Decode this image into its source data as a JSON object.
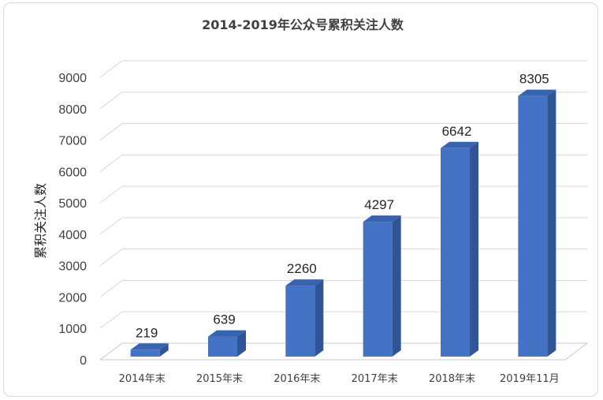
{
  "chart_data": {
    "type": "bar",
    "title": "2014-2019年公众号累积关注人数",
    "ylabel": "累积关注人数",
    "xlabel": "",
    "categories": [
      "2014年末",
      "2015年末",
      "2016年末",
      "2017年末",
      "2018年末",
      "2019年11月"
    ],
    "values": [
      219,
      639,
      2260,
      4297,
      6642,
      8305
    ],
    "data_labels": [
      "219",
      "639",
      "2260",
      "4297",
      "6642",
      "8305"
    ],
    "ylim": [
      0,
      9000
    ],
    "yticks": [
      "0",
      "1000",
      "2000",
      "3000",
      "4000",
      "5000",
      "6000",
      "7000",
      "8000",
      "9000"
    ],
    "grid": true,
    "legend": "none",
    "style": "3d-column",
    "colors": {
      "bar_front": "#4472c4",
      "bar_side": "#2f5597",
      "bar_top": "#3a63ad"
    }
  }
}
